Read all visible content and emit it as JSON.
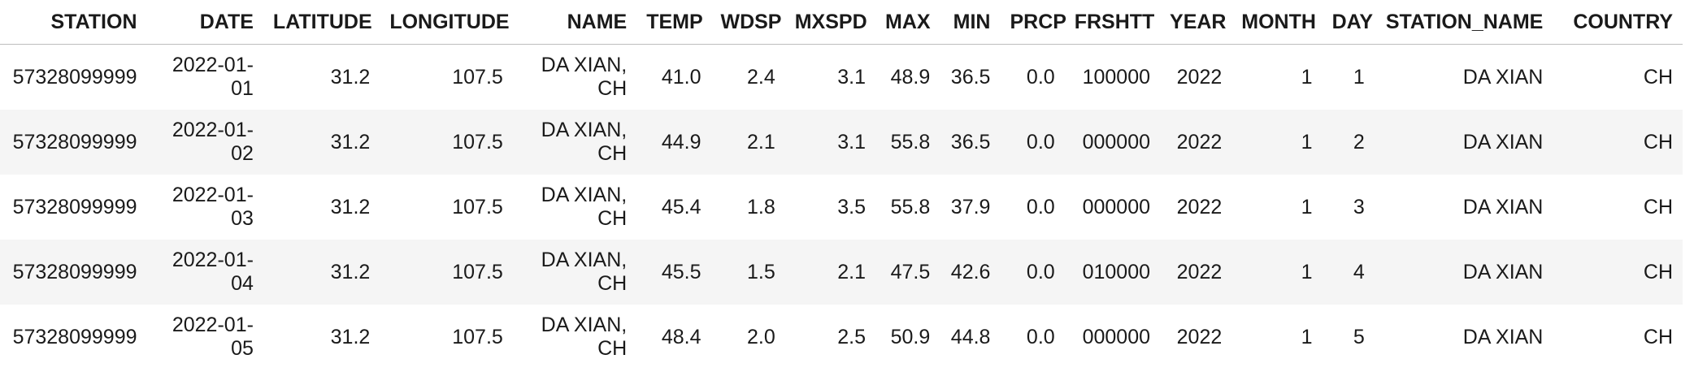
{
  "table": {
    "columns": [
      "STATION",
      "DATE",
      "LATITUDE",
      "LONGITUDE",
      "NAME",
      "TEMP",
      "WDSP",
      "MXSPD",
      "MAX",
      "MIN",
      "PRCP",
      "FRSHTT",
      "YEAR",
      "MONTH",
      "DAY",
      "STATION_NAME",
      "COUNTRY"
    ],
    "rows": [
      [
        "57328099999",
        "2022-01-01",
        "31.2",
        "107.5",
        "DA XIAN, CH",
        "41.0",
        "2.4",
        "3.1",
        "48.9",
        "36.5",
        "0.0",
        "100000",
        "2022",
        "1",
        "1",
        "DA XIAN",
        "CH"
      ],
      [
        "57328099999",
        "2022-01-02",
        "31.2",
        "107.5",
        "DA XIAN, CH",
        "44.9",
        "2.1",
        "3.1",
        "55.8",
        "36.5",
        "0.0",
        "000000",
        "2022",
        "1",
        "2",
        "DA XIAN",
        "CH"
      ],
      [
        "57328099999",
        "2022-01-03",
        "31.2",
        "107.5",
        "DA XIAN, CH",
        "45.4",
        "1.8",
        "3.5",
        "55.8",
        "37.9",
        "0.0",
        "000000",
        "2022",
        "1",
        "3",
        "DA XIAN",
        "CH"
      ],
      [
        "57328099999",
        "2022-01-04",
        "31.2",
        "107.5",
        "DA XIAN, CH",
        "45.5",
        "1.5",
        "2.1",
        "47.5",
        "42.6",
        "0.0",
        "010000",
        "2022",
        "1",
        "4",
        "DA XIAN",
        "CH"
      ],
      [
        "57328099999",
        "2022-01-05",
        "31.2",
        "107.5",
        "DA XIAN, CH",
        "48.4",
        "2.0",
        "2.5",
        "50.9",
        "44.8",
        "0.0",
        "000000",
        "2022",
        "1",
        "5",
        "DA XIAN",
        "CH"
      ]
    ]
  }
}
